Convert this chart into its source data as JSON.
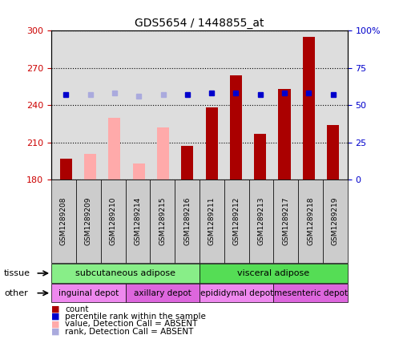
{
  "title": "GDS5654 / 1448855_at",
  "samples": [
    "GSM1289208",
    "GSM1289209",
    "GSM1289210",
    "GSM1289214",
    "GSM1289215",
    "GSM1289216",
    "GSM1289211",
    "GSM1289212",
    "GSM1289213",
    "GSM1289217",
    "GSM1289218",
    "GSM1289219"
  ],
  "bar_values": [
    197,
    201,
    230,
    193,
    222,
    207,
    238,
    264,
    217,
    253,
    295,
    224
  ],
  "bar_absent": [
    false,
    true,
    true,
    true,
    true,
    false,
    false,
    false,
    false,
    false,
    false,
    false
  ],
  "rank_values": [
    57,
    57,
    58,
    56,
    57,
    57,
    58,
    58,
    57,
    58,
    58,
    57
  ],
  "rank_absent": [
    false,
    true,
    true,
    true,
    true,
    false,
    false,
    false,
    false,
    false,
    false,
    false
  ],
  "ylim_left": [
    180,
    300
  ],
  "ylim_right": [
    0,
    100
  ],
  "yticks_left": [
    180,
    210,
    240,
    270,
    300
  ],
  "yticks_right": [
    0,
    25,
    50,
    75,
    100
  ],
  "bar_color_present": "#aa0000",
  "bar_color_absent": "#ffaaaa",
  "rank_color_present": "#0000cc",
  "rank_color_absent": "#aaaadd",
  "tissue_labels": [
    {
      "label": "subcutaneous adipose",
      "start": 0,
      "end": 6,
      "color": "#88ee88"
    },
    {
      "label": "visceral adipose",
      "start": 6,
      "end": 12,
      "color": "#55dd55"
    }
  ],
  "other_labels": [
    {
      "label": "inguinal depot",
      "start": 0,
      "end": 3,
      "color": "#ee88ee"
    },
    {
      "label": "axillary depot",
      "start": 3,
      "end": 6,
      "color": "#dd66dd"
    },
    {
      "label": "epididymal depot",
      "start": 6,
      "end": 9,
      "color": "#ee88ee"
    },
    {
      "label": "mesenteric depot",
      "start": 9,
      "end": 12,
      "color": "#dd66dd"
    }
  ],
  "legend_items": [
    {
      "label": "count",
      "color": "#aa0000"
    },
    {
      "label": "percentile rank within the sample",
      "color": "#0000cc"
    },
    {
      "label": "value, Detection Call = ABSENT",
      "color": "#ffaaaa"
    },
    {
      "label": "rank, Detection Call = ABSENT",
      "color": "#aaaadd"
    }
  ],
  "tissue_arrow_label": "tissue",
  "other_arrow_label": "other",
  "ylabel_left_color": "#cc0000",
  "ylabel_right_color": "#0000cc",
  "plot_bg_color": "#dddddd",
  "bar_width": 0.5,
  "rank_marker_size": 5
}
